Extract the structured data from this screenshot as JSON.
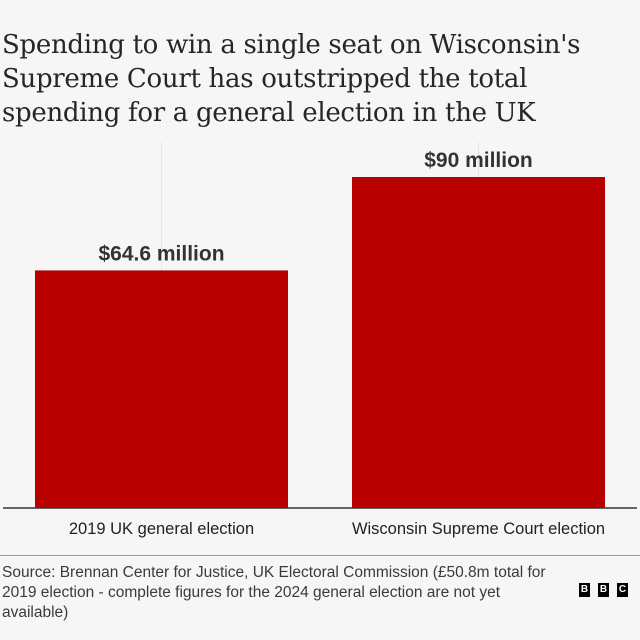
{
  "title": "Spending to win a single seat on Wisconsin's Supreme Court has outstripped the total spending for a general election in the UK",
  "chart_data": {
    "type": "bar",
    "title": "Spending to win a single seat on Wisconsin's Supreme Court has outstripped the total spending for a general election in the UK",
    "categories": [
      "2019 UK general election",
      "Wisconsin Supreme Court election"
    ],
    "values": [
      64.6,
      90
    ],
    "value_labels": [
      "$64.6 million",
      "$90 million"
    ],
    "unit": "USD millions",
    "xlabel": "",
    "ylabel": "",
    "ylim": [
      0,
      90
    ],
    "grid": false,
    "legend": "none",
    "bar_color": "#b80000"
  },
  "footer": {
    "source": "Source: Brennan Center for Justice, UK Electoral Commission (£50.8m total for 2019 election - complete figures for the 2024 general election are not yet available)",
    "logo_letters": [
      "B",
      "B",
      "C"
    ]
  },
  "colors": {
    "background": "#f6f6f6",
    "bar": "#b80000",
    "text": "#222222"
  }
}
